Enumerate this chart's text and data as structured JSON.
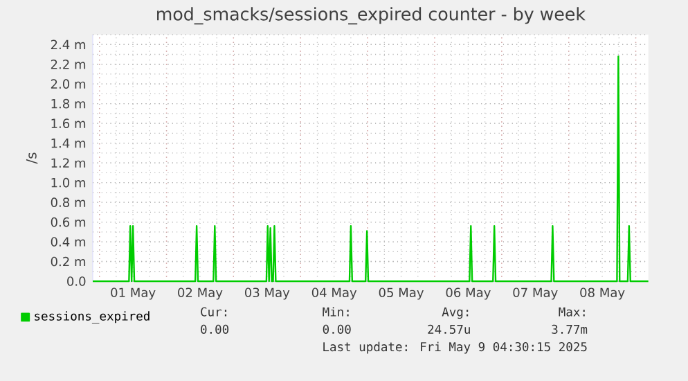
{
  "chart_data": {
    "type": "line",
    "title": "mod_smacks/sessions_expired counter - by week",
    "ylabel": "/s",
    "xlim": [
      "2025-04-30T21:36",
      "2025-05-09T04:30"
    ],
    "ylim": [
      0,
      2.5
    ],
    "xticks": [
      {
        "value": "2025-05-01T12:00",
        "label": "01 May"
      },
      {
        "value": "2025-05-02T12:00",
        "label": "02 May"
      },
      {
        "value": "2025-05-03T12:00",
        "label": "03 May"
      },
      {
        "value": "2025-05-04T12:00",
        "label": "04 May"
      },
      {
        "value": "2025-05-05T12:00",
        "label": "05 May"
      },
      {
        "value": "2025-05-06T12:00",
        "label": "06 May"
      },
      {
        "value": "2025-05-07T12:00",
        "label": "07 May"
      },
      {
        "value": "2025-05-08T12:00",
        "label": "08 May"
      },
      {
        "value": "2025-05-01",
        "label": null
      },
      {
        "value": "2025-05-02",
        "label": null
      },
      {
        "value": "2025-05-03",
        "label": null
      },
      {
        "value": "2025-05-04",
        "label": null
      },
      {
        "value": "2025-05-05",
        "label": null
      },
      {
        "value": "2025-05-06",
        "label": null
      },
      {
        "value": "2025-05-07",
        "label": null
      },
      {
        "value": "2025-05-08",
        "label": null
      },
      {
        "value": "2025-05-09",
        "label": null
      }
    ],
    "yticks": [
      {
        "value": 0,
        "label": "0.0"
      },
      {
        "value": 0.2,
        "label": "0.2 m"
      },
      {
        "value": 0.4,
        "label": "0.4 m"
      },
      {
        "value": 0.6,
        "label": "0.6 m"
      },
      {
        "value": 0.8,
        "label": "0.8 m"
      },
      {
        "value": 1.0,
        "label": "1.0 m"
      },
      {
        "value": 1.2,
        "label": "1.2 m"
      },
      {
        "value": 1.4,
        "label": "1.4 m"
      },
      {
        "value": 1.6,
        "label": "1.6 m"
      },
      {
        "value": 1.8,
        "label": "1.8 m"
      },
      {
        "value": 2.0,
        "label": "2.0 m"
      },
      {
        "value": 2.2,
        "label": "2.2 m"
      },
      {
        "value": 2.4,
        "label": "2.4 m"
      }
    ],
    "grid": true,
    "legend": "bottom left",
    "marker": "none",
    "line_style": "solid",
    "series": [
      {
        "name": "sessions_expired",
        "color": "#00cc00",
        "x": [
          "2025-04-30T21:36",
          "2025-05-01T10:34",
          "2025-05-01T11:02",
          "2025-05-01T11:31",
          "2025-05-01T12:00",
          "2025-05-01T12:29",
          "2025-05-02T10:19",
          "2025-05-02T10:48",
          "2025-05-02T11:17",
          "2025-05-02T16:48",
          "2025-05-02T17:17",
          "2025-05-02T17:46",
          "2025-05-03T11:46",
          "2025-05-03T12:14",
          "2025-05-03T12:43",
          "2025-05-03T13:12",
          "2025-05-03T13:41",
          "2025-05-03T14:10",
          "2025-05-03T14:38",
          "2025-05-03T15:07",
          "2025-05-04T17:31",
          "2025-05-04T18:00",
          "2025-05-04T18:29",
          "2025-05-04T23:17",
          "2025-05-04T23:46",
          "2025-05-05T00:14",
          "2025-05-06T12:29",
          "2025-05-06T12:58",
          "2025-05-06T13:26",
          "2025-05-06T20:53",
          "2025-05-06T21:22",
          "2025-05-06T21:50",
          "2025-05-07T17:46",
          "2025-05-07T18:14",
          "2025-05-07T18:43",
          "2025-05-08T17:17",
          "2025-05-08T17:46",
          "2025-05-08T18:14",
          "2025-05-08T21:07",
          "2025-05-08T21:36",
          "2025-05-08T22:05",
          "2025-05-09T04:30"
        ],
        "values": [
          0,
          0,
          0.56,
          0,
          0.56,
          0,
          0,
          0.56,
          0,
          0,
          0.56,
          0,
          0,
          0.56,
          0,
          0.54,
          0,
          0,
          0.56,
          0,
          0,
          0.56,
          0,
          0,
          0.51,
          0,
          0,
          0.56,
          0,
          0,
          0.56,
          0,
          0,
          0.56,
          0,
          0,
          2.28,
          0,
          0,
          0.56,
          0,
          0
        ]
      }
    ],
    "annotations": [
      "Cur:",
      "Min:",
      "Avg:",
      "Max:",
      "0.00",
      "0.00",
      "24.57u",
      "3.77m",
      "Last update: Fri May  9 04:30:15 2025"
    ]
  }
}
